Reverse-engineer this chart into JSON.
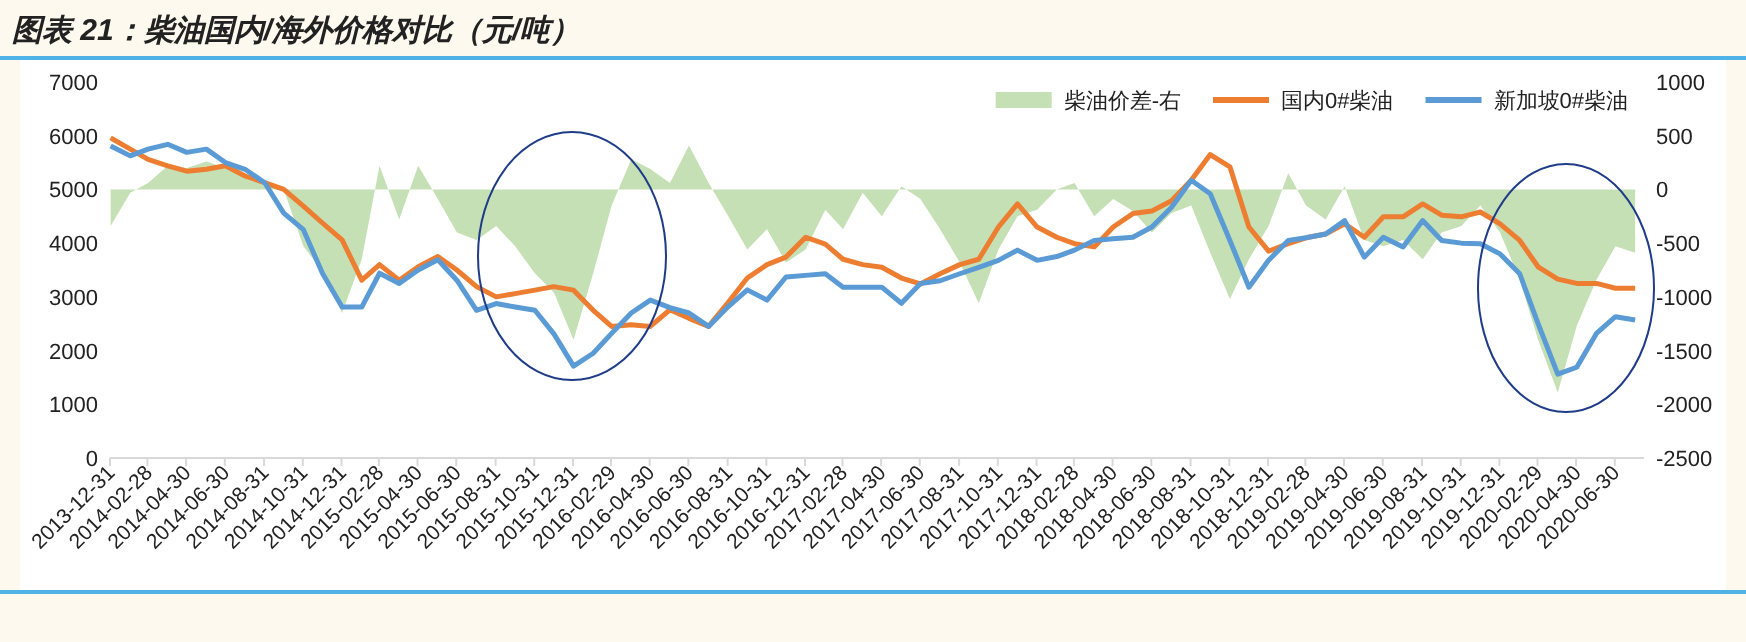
{
  "chart_data": {
    "type": "line",
    "title": "图表 21：柴油国内/海外价格对比（元/吨）",
    "x": [
      "2014-01",
      "2014-02",
      "2014-03",
      "2014-04",
      "2014-05",
      "2014-06",
      "2014-07",
      "2014-08",
      "2014-09",
      "2014-10",
      "2014-11",
      "2014-12",
      "2015-01",
      "2015-02",
      "2015-03",
      "2015-04",
      "2015-05",
      "2015-06",
      "2015-07",
      "2015-08",
      "2015-09",
      "2015-10",
      "2015-11",
      "2015-12",
      "2016-01",
      "2016-02",
      "2016-03",
      "2016-04",
      "2016-05",
      "2016-06",
      "2016-07",
      "2016-08",
      "2016-09",
      "2016-10",
      "2016-11",
      "2016-12",
      "2017-01",
      "2017-02",
      "2017-03",
      "2017-04",
      "2017-05",
      "2017-06",
      "2017-07",
      "2017-08",
      "2017-09",
      "2017-10",
      "2017-11",
      "2017-12",
      "2018-01",
      "2018-02",
      "2018-03",
      "2018-04",
      "2018-05",
      "2018-06",
      "2018-07",
      "2018-08",
      "2018-09",
      "2018-10",
      "2018-11",
      "2018-12",
      "2019-01",
      "2019-02",
      "2019-03",
      "2019-04",
      "2019-05",
      "2019-06",
      "2019-07",
      "2019-08",
      "2019-09",
      "2019-10",
      "2019-11",
      "2019-12",
      "2020-01",
      "2020-02",
      "2020-03",
      "2020-04",
      "2020-05",
      "2020-06",
      "2020-07",
      "2020-08"
    ],
    "series": [
      {
        "name": "柴油价差-右",
        "type": "area",
        "axis": "y2",
        "color": "#c5e0b4",
        "values": [
          -340,
          -30,
          60,
          220,
          200,
          260,
          200,
          140,
          80,
          0,
          -530,
          -760,
          -1150,
          -650,
          220,
          -280,
          220,
          -90,
          -400,
          -470,
          -340,
          -530,
          -780,
          -960,
          -1400,
          -780,
          -150,
          280,
          190,
          60,
          410,
          60,
          -250,
          -560,
          -370,
          -680,
          -560,
          -190,
          -370,
          -30,
          -250,
          30,
          -90,
          -370,
          -680,
          -1060,
          -560,
          -250,
          -190,
          0,
          60,
          -250,
          -90,
          -200,
          -400,
          -220,
          -150,
          -590,
          -1020,
          -650,
          -340,
          150,
          -150,
          -280,
          30,
          -470,
          -530,
          -470,
          -650,
          -400,
          -340,
          -150,
          -400,
          -840,
          -1400,
          -1890,
          -1270,
          -840,
          -530,
          -590
        ]
      },
      {
        "name": "国内0#柴油",
        "color": "#ed7d31",
        "values": [
          5960,
          5750,
          5560,
          5440,
          5340,
          5375,
          5440,
          5250,
          5125,
          5000,
          4690,
          4375,
          4060,
          3310,
          3600,
          3310,
          3560,
          3750,
          3500,
          3190,
          3000,
          3060,
          3125,
          3190,
          3125,
          2750,
          2450,
          2480,
          2450,
          2760,
          2600,
          2450,
          2900,
          3350,
          3600,
          3740,
          4110,
          3980,
          3700,
          3600,
          3550,
          3350,
          3240,
          3430,
          3600,
          3700,
          4300,
          4730,
          4300,
          4110,
          3990,
          3930,
          4300,
          4550,
          4600,
          4790,
          5170,
          5650,
          5420,
          4300,
          3850,
          3990,
          4100,
          4170,
          4360,
          4110,
          4490,
          4490,
          4730,
          4520,
          4490,
          4580,
          4360,
          4050,
          3560,
          3330,
          3250,
          3250,
          3160,
          3160
        ]
      },
      {
        "name": "新加坡0#柴油",
        "color": "#5b9bd5",
        "values": [
          5810,
          5625,
          5750,
          5840,
          5690,
          5750,
          5500,
          5375,
          5125,
          4560,
          4250,
          3440,
          2810,
          2810,
          3440,
          3250,
          3500,
          3690,
          3310,
          2750,
          2875,
          2810,
          2750,
          2310,
          1710,
          1950,
          2320,
          2700,
          2940,
          2800,
          2700,
          2450,
          2820,
          3130,
          2940,
          3370,
          3400,
          3430,
          3180,
          3180,
          3180,
          2880,
          3250,
          3300,
          3430,
          3550,
          3680,
          3870,
          3680,
          3750,
          3870,
          4050,
          4080,
          4110,
          4300,
          4670,
          5170,
          4920,
          4050,
          3180,
          3680,
          4050,
          4100,
          4170,
          4420,
          3740,
          4110,
          3930,
          4420,
          4050,
          4000,
          3990,
          3800,
          3430,
          2500,
          1560,
          1690,
          2320,
          2630,
          2570
        ]
      }
    ],
    "xlim": [
      "2013-12-31",
      "2020-08-15"
    ],
    "xticks": [
      "2013-12-31",
      "2014-02-28",
      "2014-04-30",
      "2014-06-30",
      "2014-08-31",
      "2014-10-31",
      "2014-12-31",
      "2015-02-28",
      "2015-04-30",
      "2015-06-30",
      "2015-08-31",
      "2015-10-31",
      "2015-12-31",
      "2016-02-29",
      "2016-04-30",
      "2016-06-30",
      "2016-08-31",
      "2016-10-31",
      "2016-12-31",
      "2017-02-28",
      "2017-04-30",
      "2017-06-30",
      "2017-08-31",
      "2017-10-31",
      "2017-12-31",
      "2018-02-28",
      "2018-04-30",
      "2018-06-30",
      "2018-08-31",
      "2018-10-31",
      "2018-12-31",
      "2019-02-28",
      "2019-04-30",
      "2019-06-30",
      "2019-08-31",
      "2019-10-31",
      "2019-12-31",
      "2020-02-29",
      "2020-04-30",
      "2020-06-30"
    ],
    "ylim": [
      0,
      7000
    ],
    "yticks": [
      0,
      1000,
      2000,
      3000,
      4000,
      5000,
      6000,
      7000
    ],
    "y2lim": [
      -2500,
      1000
    ],
    "y2ticks": [
      -2500,
      -2000,
      -1500,
      -1000,
      -500,
      0,
      500,
      1000
    ],
    "legend": "top right",
    "grid": false
  }
}
